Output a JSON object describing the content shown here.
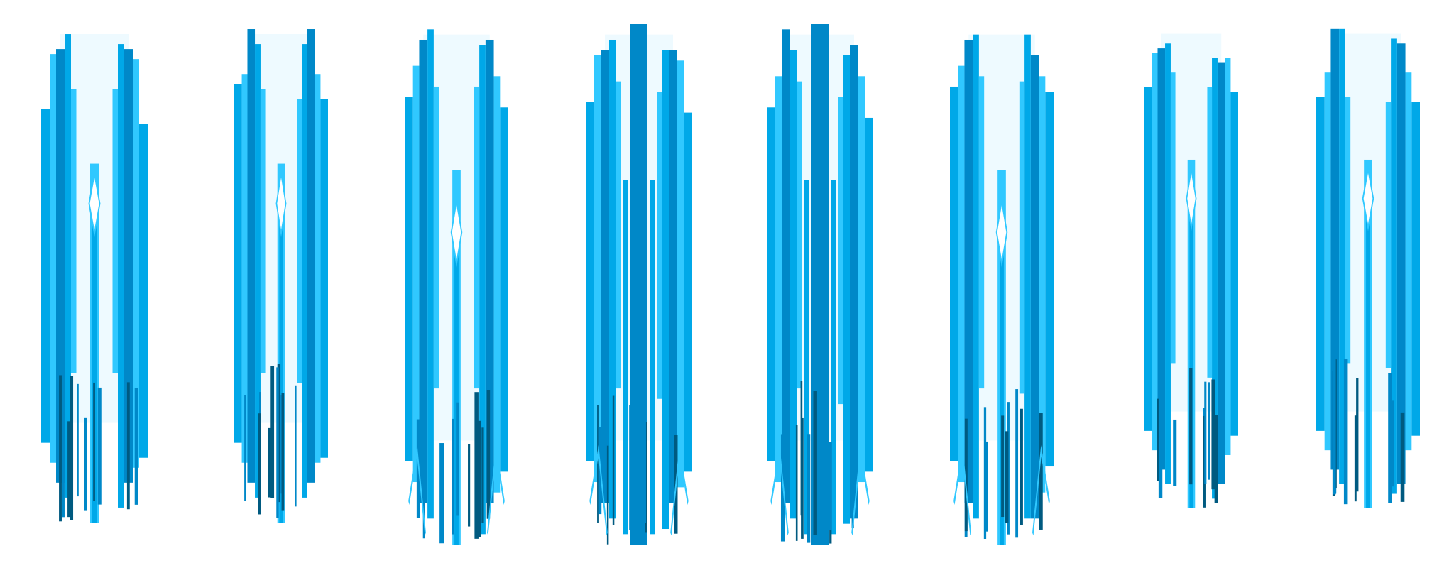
{
  "sprite_sheet": {
    "frame_count": 8,
    "frames": [
      {
        "style": "diamond"
      },
      {
        "style": "diamond"
      },
      {
        "style": "beam"
      },
      {
        "style": "pillar"
      },
      {
        "style": "pillar"
      },
      {
        "style": "beam"
      },
      {
        "style": "diamond"
      },
      {
        "style": "diamond"
      }
    ]
  },
  "colors": {
    "background": "#ffffff",
    "dark": "#005a80",
    "deep": "#0088c8",
    "mid": "#00a8e8",
    "light": "#30c8ff",
    "glow": "#eefaff"
  }
}
